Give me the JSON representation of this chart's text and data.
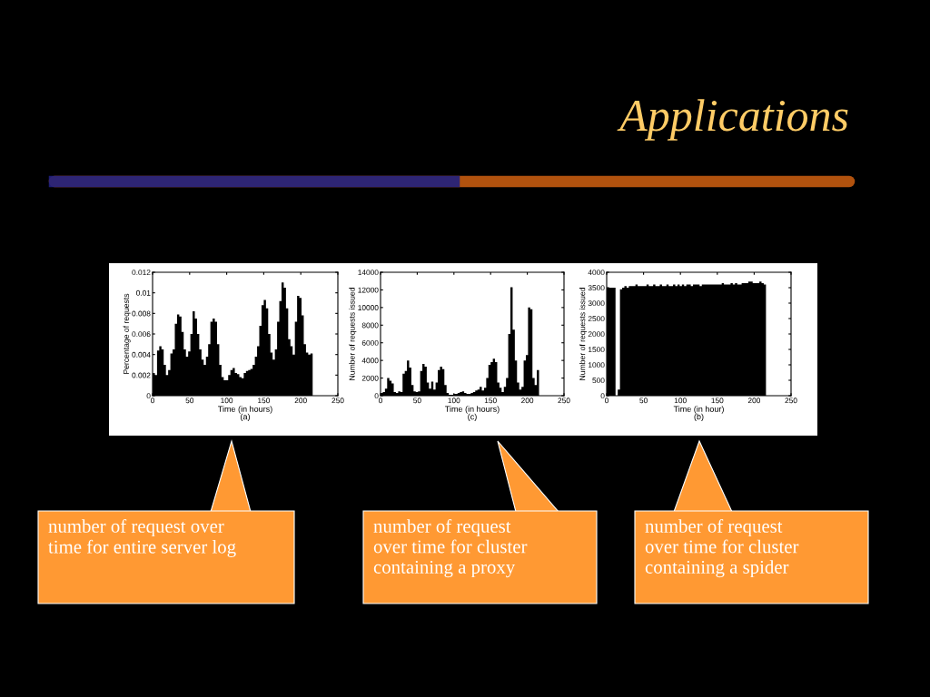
{
  "chart_data": [
    {
      "type": "other",
      "title": "Applications"
    },
    {
      "type": "histogram",
      "xlabel": "Time (in hours)\n(a)",
      "ylabel": "Percentage of requests",
      "color": "#000000",
      "bins": [
        0,
        3,
        6,
        9,
        12,
        15,
        18,
        21,
        24,
        27,
        30,
        33,
        36,
        39,
        42,
        45,
        48,
        51,
        54,
        57,
        60,
        63,
        66,
        69,
        72,
        75,
        78,
        81,
        84,
        87,
        90,
        93,
        96,
        99,
        102,
        105,
        108,
        111,
        114,
        117,
        120,
        123,
        126,
        129,
        132,
        135,
        138,
        141,
        144,
        147,
        150,
        153,
        156,
        159,
        162,
        165,
        168,
        171,
        174,
        177,
        180,
        183,
        186,
        189,
        192,
        195,
        198,
        201,
        204,
        207,
        210,
        213,
        216
      ],
      "values": [
        0.0022,
        0.002,
        0.0044,
        0.0048,
        0.0045,
        0.003,
        0.002,
        0.0025,
        0.0041,
        0.0045,
        0.007,
        0.0079,
        0.0077,
        0.0062,
        0.0045,
        0.0038,
        0.0043,
        0.006,
        0.0082,
        0.0075,
        0.006,
        0.0045,
        0.0035,
        0.003,
        0.0038,
        0.005,
        0.0072,
        0.0075,
        0.0072,
        0.005,
        0.003,
        0.0018,
        0.0015,
        0.0015,
        0.002,
        0.0025,
        0.0027,
        0.0022,
        0.0021,
        0.0018,
        0.0017,
        0.0022,
        0.0024,
        0.0025,
        0.0026,
        0.003,
        0.0038,
        0.0048,
        0.0068,
        0.0088,
        0.0093,
        0.0085,
        0.006,
        0.0042,
        0.0035,
        0.0045,
        0.0072,
        0.0092,
        0.011,
        0.0105,
        0.0085,
        0.0055,
        0.0048,
        0.004,
        0.0072,
        0.0097,
        0.0095,
        0.0078,
        0.005,
        0.0042,
        0.004,
        0.0041
      ],
      "xlim": [
        0,
        250
      ],
      "xticks": [
        0,
        50,
        100,
        150,
        200,
        250
      ],
      "ylim": [
        0,
        0.012
      ],
      "yticks": [
        0,
        0.002,
        0.004,
        0.006,
        0.008,
        0.01,
        0.012
      ],
      "annotations": [
        "number of request over\ntime for entire server log"
      ]
    },
    {
      "type": "histogram",
      "xlabel": "Time (in hours)\n(c)",
      "ylabel": "Number of requests issued",
      "color": "#000000",
      "bins": [
        0,
        3,
        6,
        9,
        12,
        15,
        18,
        21,
        24,
        27,
        30,
        33,
        36,
        39,
        42,
        45,
        48,
        51,
        54,
        57,
        60,
        63,
        66,
        69,
        72,
        75,
        78,
        81,
        84,
        87,
        90,
        93,
        96,
        99,
        102,
        105,
        108,
        111,
        114,
        117,
        120,
        123,
        126,
        129,
        132,
        135,
        138,
        141,
        144,
        147,
        150,
        153,
        156,
        159,
        162,
        165,
        168,
        171,
        174,
        177,
        180,
        183,
        186,
        189,
        192,
        195,
        198,
        201,
        204,
        207,
        210,
        213,
        216
      ],
      "values": [
        300,
        400,
        800,
        2000,
        1700,
        1400,
        400,
        300,
        500,
        400,
        2500,
        2800,
        4000,
        3200,
        1200,
        500,
        400,
        500,
        2800,
        3600,
        3300,
        1500,
        800,
        1600,
        700,
        1500,
        2900,
        3300,
        3000,
        1200,
        300,
        100,
        100,
        200,
        200,
        300,
        400,
        500,
        300,
        200,
        200,
        300,
        400,
        600,
        700,
        1000,
        600,
        900,
        2000,
        3500,
        3800,
        4200,
        3800,
        1500,
        900,
        400,
        1000,
        2000,
        7000,
        12300,
        7500,
        4000,
        1500,
        700,
        1000,
        4000,
        4600,
        10000,
        9800,
        2000,
        1200,
        2900
      ],
      "xlim": [
        0,
        250
      ],
      "xticks": [
        0,
        50,
        100,
        150,
        200,
        250
      ],
      "ylim": [
        0,
        14000
      ],
      "yticks": [
        0,
        2000,
        4000,
        6000,
        8000,
        10000,
        12000,
        14000
      ],
      "annotations": [
        "number of request\nover time for cluster\ncontaining a proxy"
      ]
    },
    {
      "type": "histogram",
      "xlabel": "Time (in hour)\n(b)",
      "ylabel": "Number of requests issued",
      "color": "#000000",
      "bins": [
        0,
        3,
        6,
        9,
        12,
        15,
        18,
        21,
        24,
        27,
        30,
        33,
        36,
        39,
        42,
        45,
        48,
        51,
        54,
        57,
        60,
        63,
        66,
        69,
        72,
        75,
        78,
        81,
        84,
        87,
        90,
        93,
        96,
        99,
        102,
        105,
        108,
        111,
        114,
        117,
        120,
        123,
        126,
        129,
        132,
        135,
        138,
        141,
        144,
        147,
        150,
        153,
        156,
        159,
        162,
        165,
        168,
        171,
        174,
        177,
        180,
        183,
        186,
        189,
        192,
        195,
        198,
        201,
        204,
        207,
        210,
        213,
        216
      ],
      "values": [
        3500,
        3500,
        3500,
        3500,
        0,
        200,
        3450,
        3500,
        3550,
        3500,
        3550,
        3550,
        3550,
        3600,
        3550,
        3550,
        3550,
        3550,
        3600,
        3550,
        3550,
        3600,
        3550,
        3550,
        3600,
        3550,
        3550,
        3600,
        3550,
        3550,
        3600,
        3550,
        3600,
        3550,
        3600,
        3550,
        3600,
        3600,
        3550,
        3600,
        3600,
        3600,
        3550,
        3600,
        3600,
        3600,
        3600,
        3600,
        3600,
        3600,
        3600,
        3600,
        3650,
        3600,
        3600,
        3600,
        3650,
        3600,
        3650,
        3600,
        3600,
        3650,
        3650,
        3650,
        3700,
        3700,
        3650,
        3650,
        3650,
        3700,
        3650,
        3600
      ],
      "xlim": [
        0,
        250
      ],
      "xticks": [
        0,
        50,
        100,
        150,
        200,
        250
      ],
      "ylim": [
        0,
        4000
      ],
      "yticks": [
        0,
        500,
        1000,
        1500,
        2000,
        2500,
        3000,
        3500,
        4000
      ],
      "annotations": [
        "number of request\nover time for cluster\ncontaining a spider"
      ]
    }
  ]
}
